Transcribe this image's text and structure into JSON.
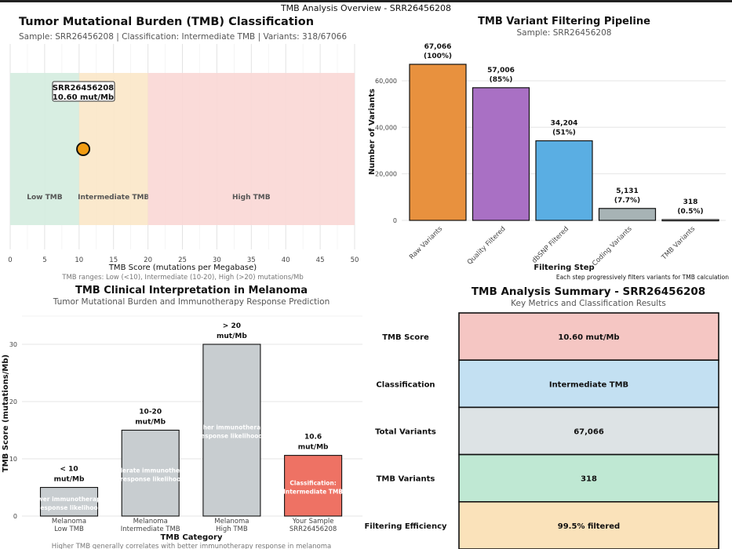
{
  "window_title": "TMB Analysis Overview - SRR26456208",
  "chart_data": [
    {
      "type": "scatter",
      "title": "Tumor Mutational Burden (TMB) Classification",
      "subtitle": "Sample: SRR26456208 | Classification: Intermediate TMB | Variants: 318/67066",
      "xlabel": "TMB Score (mutations per Megabase)",
      "note": "TMB ranges: Low (<10), Intermediate (10-20), High (>20) mutations/Mb",
      "xlim": [
        0,
        50
      ],
      "xticks": [
        0,
        5,
        10,
        15,
        20,
        25,
        30,
        35,
        40,
        45,
        50
      ],
      "regions": [
        {
          "label": "Low TMB",
          "from": 0,
          "to": 10,
          "color": "#d4ecdf"
        },
        {
          "label": "Intermediate TMB",
          "from": 10,
          "to": 20,
          "color": "#fbe7c8"
        },
        {
          "label": "High TMB",
          "from": 20,
          "to": 50,
          "color": "#f9d7d5"
        }
      ],
      "points": [
        {
          "x": 10.6,
          "color": "#f39c12"
        }
      ],
      "annotation": {
        "line1": "SRR26456208",
        "line2": "10.60 mut/Mb"
      },
      "grid": true
    },
    {
      "type": "bar",
      "title": "TMB Variant Filtering Pipeline",
      "subtitle": "Sample: SRR26456208",
      "xlabel": "Filtering Step",
      "ylabel": "Number of Variants",
      "note": "Each step progressively filters variants for TMB calculation",
      "ylim": [
        0,
        67066
      ],
      "yticks": [
        0,
        20000,
        40000,
        60000
      ],
      "ytick_labels": [
        "0",
        "20,000",
        "40,000",
        "60,000"
      ],
      "categories": [
        "Raw Variants",
        "Quality Filtered",
        "dbSNP Filtered",
        "Coding Variants",
        "TMB Variants"
      ],
      "values": [
        67066,
        57006,
        34204,
        5131,
        318
      ],
      "value_labels": [
        "67,066",
        "57,006",
        "34,204",
        "5,131",
        "318"
      ],
      "pct_labels": [
        "(100%)",
        "(85%)",
        "(51%)",
        "(7.7%)",
        "(0.5%)"
      ],
      "colors": [
        "#e8913e",
        "#a970c4",
        "#5aaee3",
        "#a7b3b5",
        "#ffffff"
      ],
      "grid": true
    },
    {
      "type": "bar",
      "title": "TMB Clinical Interpretation in Melanoma",
      "subtitle": "Tumor Mutational Burden and Immunotherapy Response Prediction",
      "xlabel": "TMB Category",
      "ylabel": "TMB Score (mutations/Mb)",
      "note": "Higher TMB generally correlates with better immunotherapy response in melanoma",
      "ylim": [
        0,
        32
      ],
      "yticks": [
        0,
        10,
        20,
        30
      ],
      "categories": [
        [
          "Melanoma",
          "Low TMB"
        ],
        [
          "Melanoma",
          "Intermediate TMB"
        ],
        [
          "Melanoma",
          "High TMB"
        ],
        [
          "Your Sample",
          "SRR26456208"
        ]
      ],
      "values": [
        5,
        15,
        30,
        10.6
      ],
      "top_labels": [
        [
          "< 10",
          "mut/Mb"
        ],
        [
          "10-20",
          "mut/Mb"
        ],
        [
          "> 20",
          "mut/Mb"
        ],
        [
          "10.6",
          "mut/Mb"
        ]
      ],
      "inner_labels": [
        [
          "wer immunotherap",
          "esponse likelihoo"
        ],
        [
          "derate immunother",
          "response likelihoo"
        ],
        [
          "gher immunotherap",
          "esponse likelihood"
        ],
        [
          "Classification:",
          "Intermediate TMB"
        ]
      ],
      "colors": [
        "#c8cdd0",
        "#c8cdd0",
        "#c8cdd0",
        "#ee7264"
      ],
      "grid": true
    },
    {
      "type": "table",
      "title": "TMB Analysis Summary - SRR26456208",
      "subtitle": "Key Metrics and Classification Results",
      "rows": [
        {
          "label": "TMB Score",
          "value": "10.60 mut/Mb",
          "color": "#f5c6c3"
        },
        {
          "label": "Classification",
          "value": "Intermediate TMB",
          "color": "#c3e0f2"
        },
        {
          "label": "Total Variants",
          "value": "67,066",
          "color": "#dde3e5"
        },
        {
          "label": "TMB Variants",
          "value": "318",
          "color": "#bfe8d3"
        },
        {
          "label": "Filtering Efficiency",
          "value": "99.5% filtered",
          "color": "#fae2ba"
        }
      ]
    }
  ]
}
